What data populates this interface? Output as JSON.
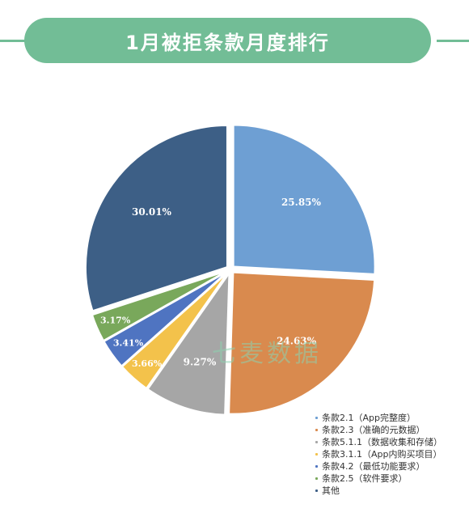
{
  "page": {
    "title": "1月被拒条款月度排行",
    "watermark": "七麦数据"
  },
  "colors": {
    "accent": "#72bd96"
  },
  "chart_data": {
    "type": "pie",
    "title": "1月被拒条款月度排行",
    "legend_position": "bottom-right",
    "slices": [
      {
        "label": "条款2.1（App完整度）",
        "value": 25.85,
        "display": "25.85%",
        "color": "#6e9fd3"
      },
      {
        "label": "条款2.3（准确的元数据）",
        "value": 24.63,
        "display": "24.63%",
        "color": "#d98a4e"
      },
      {
        "label": "条款5.1.1（数据收集和存储）",
        "value": 9.27,
        "display": "9.27%",
        "color": "#a6a6a6"
      },
      {
        "label": "条款3.1.1（App内购买项目）",
        "value": 3.66,
        "display": "3.66%",
        "color": "#f3c24b"
      },
      {
        "label": "条款4.2（最低功能要求）",
        "value": 3.41,
        "display": "3.41%",
        "color": "#4f74c1"
      },
      {
        "label": "条款2.5（软件要求）",
        "value": 3.17,
        "display": "3.17%",
        "color": "#79a85b"
      },
      {
        "label": "其他",
        "value": 30.01,
        "display": "30.01%",
        "color": "#3d5f86"
      }
    ]
  }
}
